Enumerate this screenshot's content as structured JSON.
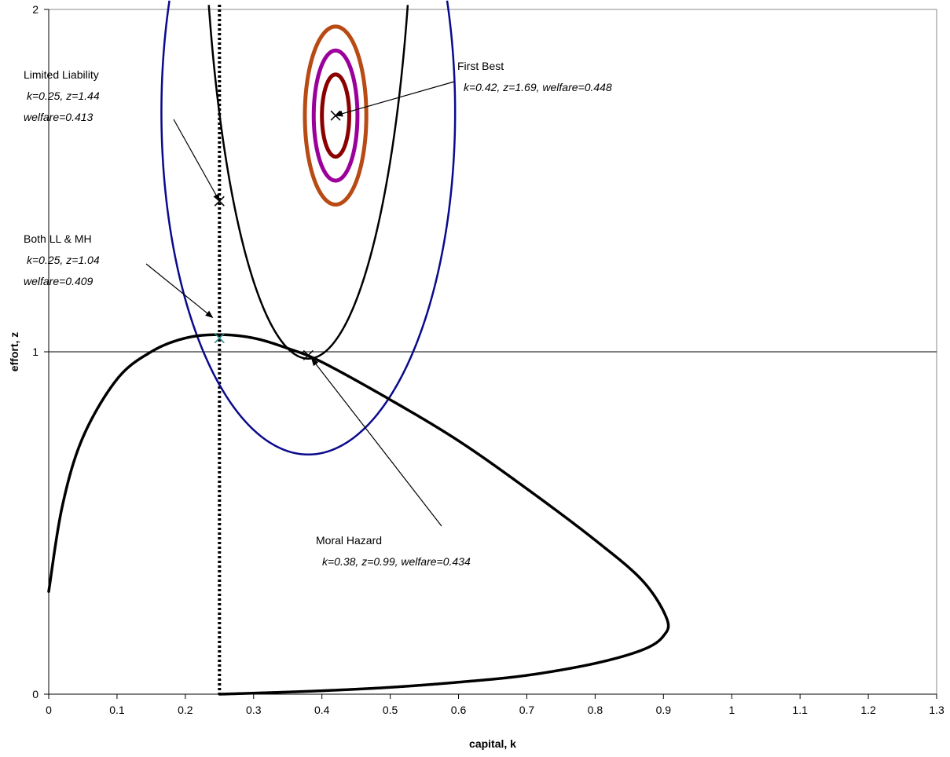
{
  "chart_data": {
    "type": "line",
    "xlabel": "capital, k",
    "ylabel": "effort, z",
    "xlim": [
      0,
      1.3
    ],
    "ylim": [
      0,
      2
    ],
    "x_ticks": [
      "0",
      "0.1",
      "0.2",
      "0.3",
      "0.4",
      "0.5",
      "0.6",
      "0.7",
      "0.8",
      "0.9",
      "1",
      "1.1",
      "1.2",
      "1.3"
    ],
    "y_ticks": [
      "0",
      "1",
      "2"
    ],
    "gridlines_y": [
      1
    ],
    "limited_liability_k": 0.25,
    "series": [
      {
        "role": "moral-hazard-constraint",
        "style": "dotted-black",
        "points": [
          [
            0.0,
            0.3
          ],
          [
            0.02,
            0.55
          ],
          [
            0.05,
            0.75
          ],
          [
            0.1,
            0.92
          ],
          [
            0.15,
            1.0
          ],
          [
            0.2,
            1.04
          ],
          [
            0.25,
            1.05
          ],
          [
            0.3,
            1.04
          ],
          [
            0.35,
            1.01
          ],
          [
            0.4,
            0.97
          ],
          [
            0.5,
            0.86
          ],
          [
            0.6,
            0.74
          ],
          [
            0.7,
            0.6
          ],
          [
            0.8,
            0.45
          ],
          [
            0.87,
            0.33
          ],
          [
            0.905,
            0.22
          ],
          [
            0.9,
            0.17
          ],
          [
            0.87,
            0.13
          ],
          [
            0.8,
            0.09
          ],
          [
            0.7,
            0.055
          ],
          [
            0.6,
            0.035
          ],
          [
            0.5,
            0.02
          ],
          [
            0.4,
            0.01
          ],
          [
            0.3,
            0.003
          ],
          [
            0.25,
            0.0
          ]
        ]
      }
    ],
    "contours": [
      {
        "role": "first-best-inner",
        "color": "#8b0000",
        "center": [
          0.42,
          1.69
        ],
        "rk": 0.02,
        "rz": 0.12
      },
      {
        "role": "first-best-middle",
        "color": "#9b009b",
        "center": [
          0.42,
          1.69
        ],
        "rk": 0.032,
        "rz": 0.19
      },
      {
        "role": "first-best-outer",
        "color": "#b84a14",
        "center": [
          0.42,
          1.69
        ],
        "rk": 0.045,
        "rz": 0.26
      },
      {
        "role": "moral-hazard-isowelfare",
        "color": "#000000",
        "center": [
          0.38,
          2.55
        ],
        "rk": 0.155,
        "rz": 1.57,
        "zmax": 2
      },
      {
        "role": "limited-liability-isowelfare",
        "color": "#0a0a8c",
        "center": [
          0.38,
          1.7
        ],
        "rk": 0.215,
        "rz": 1.0,
        "zmax": 2
      }
    ],
    "points": [
      {
        "role": "first-best",
        "k": 0.42,
        "z": 1.69,
        "color": "#000000"
      },
      {
        "role": "limited-liability",
        "k": 0.25,
        "z": 1.44,
        "color": "#000000"
      },
      {
        "role": "both",
        "k": 0.25,
        "z": 1.04,
        "color": "#2a8c8c"
      },
      {
        "role": "moral-hazard",
        "k": 0.38,
        "z": 0.99,
        "color": "#000000"
      }
    ],
    "annotations": [
      {
        "role": "first-best",
        "title": "First Best",
        "detail": "k=0.42, z=1.69, welfare=0.448",
        "target": [
          0.42,
          1.69
        ]
      },
      {
        "role": "limited-liability",
        "title": "Limited Liability",
        "detail": "k=0.25, z=1.44",
        "detail2": "welfare=0.413",
        "target": [
          0.25,
          1.44
        ]
      },
      {
        "role": "both",
        "title": "Both LL & MH",
        "detail": "k=0.25, z=1.04",
        "detail2": "welfare=0.409",
        "target": [
          0.24,
          1.1
        ]
      },
      {
        "role": "moral-hazard",
        "title": "Moral Hazard",
        "detail": "k=0.38, z=0.99, welfare=0.434",
        "target": [
          0.385,
          0.98
        ]
      }
    ]
  }
}
